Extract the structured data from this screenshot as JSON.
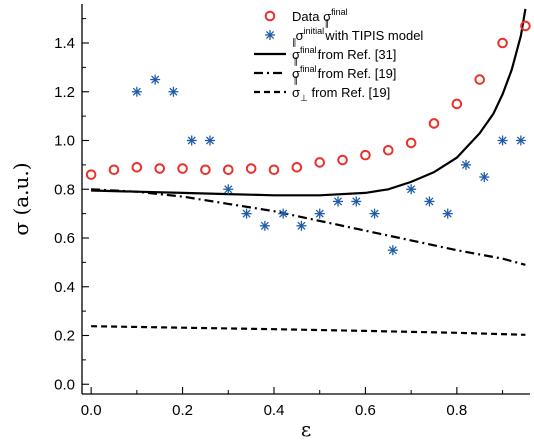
{
  "chart_data": {
    "type": "scatter",
    "xlabel": "ε",
    "ylabel": "σ (a.u.)",
    "xlim": [
      -0.02,
      0.96
    ],
    "ylim": [
      -0.04,
      1.56
    ],
    "xticks": [
      "0.0",
      "0.2",
      "0.4",
      "0.6",
      "0.8"
    ],
    "yticks": [
      "0.0",
      "0.2",
      "0.4",
      "0.6",
      "0.8",
      "1.0",
      "1.2",
      "1.4"
    ],
    "legend_position": "top-right",
    "series": [
      {
        "name": "Data σ∥final",
        "legend_main": "Data  σ",
        "legend_sup": "final",
        "legend_sub": "∥",
        "legend_tail": "",
        "kind": "scatter",
        "marker": "circle",
        "color": "#e8322b",
        "x": [
          0.0,
          0.05,
          0.1,
          0.15,
          0.2,
          0.25,
          0.3,
          0.35,
          0.4,
          0.45,
          0.5,
          0.55,
          0.6,
          0.65,
          0.7,
          0.75,
          0.8,
          0.85,
          0.9,
          0.95
        ],
        "y": [
          0.86,
          0.88,
          0.89,
          0.885,
          0.885,
          0.88,
          0.88,
          0.885,
          0.88,
          0.89,
          0.91,
          0.92,
          0.94,
          0.96,
          0.99,
          1.07,
          1.15,
          1.25,
          1.4,
          1.47
        ]
      },
      {
        "name": "σ∥initial with TIPIS model",
        "legend_main": "σ",
        "legend_sup": "initial",
        "legend_sub": "∥",
        "legend_tail": " with TIPIS model",
        "kind": "scatter",
        "marker": "asterisk",
        "color": "#1f5ca8",
        "x": [
          0.1,
          0.14,
          0.18,
          0.22,
          0.26,
          0.3,
          0.34,
          0.38,
          0.42,
          0.46,
          0.5,
          0.54,
          0.58,
          0.62,
          0.66,
          0.7,
          0.74,
          0.78,
          0.82,
          0.86,
          0.9,
          0.94
        ],
        "y": [
          1.2,
          1.25,
          1.2,
          1.0,
          1.0,
          0.8,
          0.7,
          0.65,
          0.7,
          0.65,
          0.7,
          0.75,
          0.75,
          0.7,
          0.55,
          0.8,
          0.75,
          0.7,
          0.9,
          0.85,
          1.0,
          1.0
        ]
      },
      {
        "name": "σ∥final from Ref. [31]",
        "legend_main": "σ",
        "legend_sup": "final",
        "legend_sub": "∥",
        "legend_tail": " from Ref. [31]",
        "kind": "line",
        "dash": "solid",
        "color": "#000000",
        "x": [
          0.0,
          0.1,
          0.2,
          0.3,
          0.4,
          0.5,
          0.6,
          0.65,
          0.7,
          0.75,
          0.8,
          0.85,
          0.88,
          0.9,
          0.92,
          0.94,
          0.95
        ],
        "y": [
          0.795,
          0.79,
          0.785,
          0.78,
          0.775,
          0.775,
          0.785,
          0.8,
          0.83,
          0.87,
          0.93,
          1.03,
          1.11,
          1.19,
          1.29,
          1.43,
          1.54
        ]
      },
      {
        "name": "σ∥final from Ref. [19]",
        "legend_main": "σ",
        "legend_sup": "final",
        "legend_sub": "∥",
        "legend_tail": " from Ref. [19]",
        "kind": "line",
        "dash": "dashdot",
        "color": "#000000",
        "x": [
          0.0,
          0.1,
          0.2,
          0.3,
          0.4,
          0.5,
          0.6,
          0.7,
          0.8,
          0.9,
          0.95
        ],
        "y": [
          0.8,
          0.79,
          0.77,
          0.74,
          0.71,
          0.67,
          0.63,
          0.59,
          0.55,
          0.515,
          0.49
        ]
      },
      {
        "name": "σ⊥ from Ref. [19]",
        "legend_main": "σ",
        "legend_sup": "",
        "legend_sub": "⊥",
        "legend_tail": " from Ref. [19]",
        "kind": "line",
        "dash": "dashed",
        "color": "#000000",
        "x": [
          0.0,
          0.2,
          0.4,
          0.6,
          0.8,
          0.95
        ],
        "y": [
          0.238,
          0.232,
          0.226,
          0.219,
          0.211,
          0.203
        ]
      }
    ]
  }
}
